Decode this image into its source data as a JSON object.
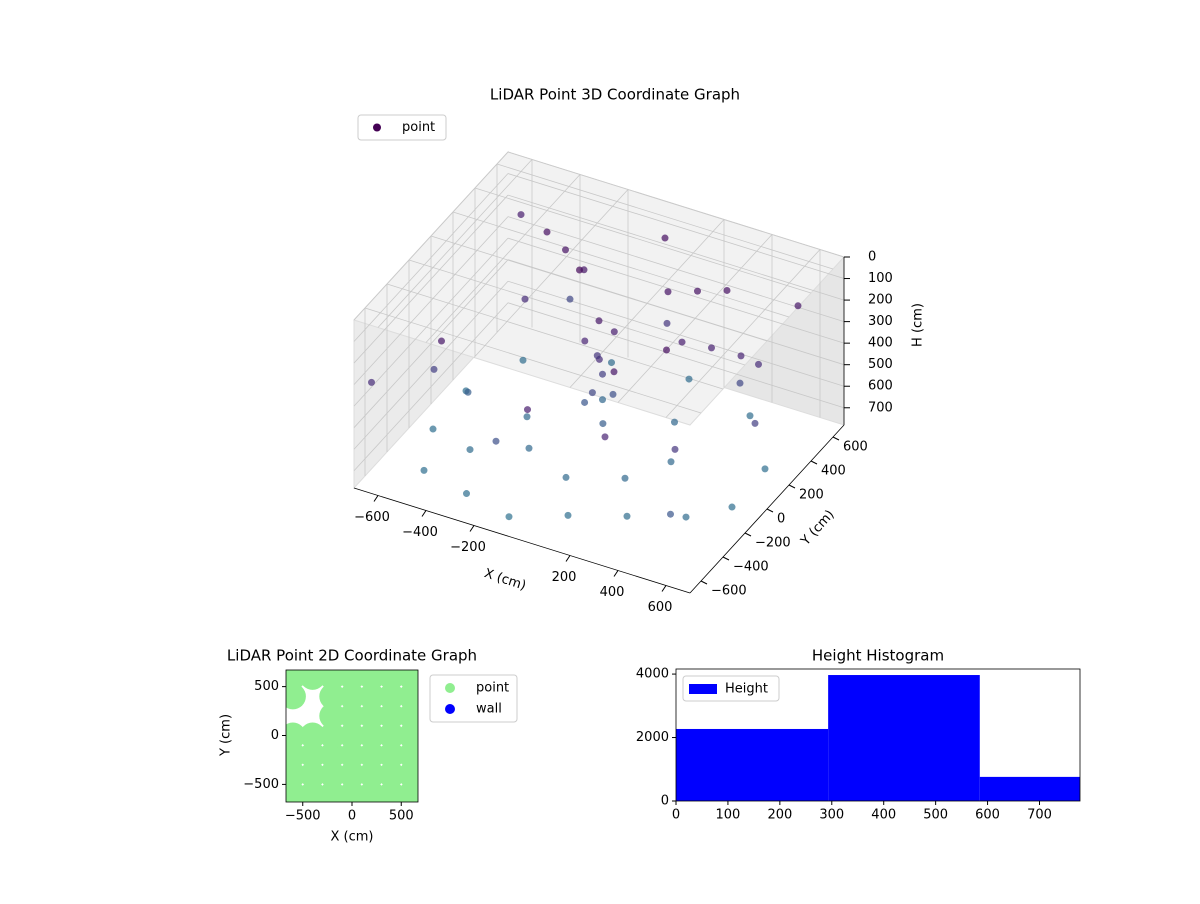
{
  "chart_data": [
    {
      "type": "scatter3d",
      "title": "LiDAR Point 3D Coordinate Graph",
      "xlabel": "X (cm)",
      "ylabel": "Y (cm)",
      "zlabel": "H (cm)",
      "xlim": [
        -700,
        700
      ],
      "ylim": [
        -700,
        700
      ],
      "zlim": [
        0,
        780
      ],
      "z_inverted": true,
      "xticks": [
        {
          "value": -600,
          "label": "−600"
        },
        {
          "value": -400,
          "label": "−400"
        },
        {
          "value": -200,
          "label": "−200"
        },
        200,
        400,
        600
      ],
      "yticks": [
        {
          "value": -600,
          "label": "−600"
        },
        {
          "value": -400,
          "label": "−400"
        },
        {
          "value": -200,
          "label": "−200"
        },
        0,
        200,
        400,
        600
      ],
      "zticks": [
        0,
        100,
        200,
        300,
        400,
        500,
        600,
        700
      ],
      "legend": "upper left",
      "colormap": [
        "#440154",
        "#482475",
        "#3b528b",
        "#2c728e"
      ],
      "series": [
        {
          "name": "point",
          "color": "#440154",
          "x": [
            0,
            50,
            -50,
            20,
            -30,
            10,
            0,
            40,
            -60,
            30,
            -200,
            -300,
            -400,
            150,
            250,
            350,
            300,
            400,
            500,
            550,
            -500,
            -300,
            -100,
            100,
            300,
            500,
            600,
            600,
            400,
            100,
            -200,
            -500,
            -600,
            -600,
            -400,
            -200,
            0,
            200,
            300,
            200,
            -100,
            -300,
            -550,
            -400,
            500,
            600,
            -600,
            0,
            300,
            -200,
            450,
            -500,
            100,
            -350,
            550,
            -650,
            650,
            0,
            200,
            -150,
            350,
            -450
          ],
          "y": [
            0,
            30,
            -20,
            -40,
            50,
            10,
            -60,
            40,
            0,
            -30,
            300,
            350,
            400,
            300,
            350,
            400,
            100,
            150,
            200,
            250,
            -500,
            -550,
            -600,
            -500,
            -400,
            -300,
            -100,
            200,
            500,
            600,
            550,
            400,
            100,
            -200,
            -300,
            -200,
            -300,
            -200,
            0,
            250,
            250,
            0,
            -300,
            200,
            -400,
            500,
            600,
            600,
            -600,
            -500,
            300,
            -100,
            400,
            500,
            -550,
            -650,
            0,
            -650,
            -300,
            150,
            -150,
            -450
          ],
          "z": [
            150,
            200,
            250,
            300,
            350,
            400,
            450,
            500,
            550,
            600,
            150,
            120,
            100,
            130,
            120,
            110,
            200,
            220,
            250,
            300,
            740,
            750,
            760,
            740,
            730,
            720,
            750,
            740,
            730,
            720,
            720,
            730,
            740,
            750,
            720,
            700,
            710,
            700,
            700,
            690,
            690,
            700,
            400,
            300,
            350,
            150,
            200,
            100,
            250,
            500,
            450,
            600,
            350,
            450,
            550,
            300,
            400,
            200,
            150,
            50,
            80,
            150
          ]
        }
      ]
    },
    {
      "type": "scatter",
      "title": "LiDAR Point 2D Coordinate Graph",
      "xlabel": "X (cm)",
      "ylabel": "Y (cm)",
      "xlim": [
        -670,
        670
      ],
      "ylim": [
        -680,
        670
      ],
      "xticks": [
        {
          "value": -500,
          "label": "−500"
        },
        0,
        500
      ],
      "yticks": [
        {
          "value": -500,
          "label": "−500"
        },
        0,
        500
      ],
      "legend": "outside right",
      "series": [
        {
          "name": "point",
          "color": "#90ee90",
          "x": [
            -600,
            -400,
            -200,
            0,
            200,
            400,
            600,
            -600,
            -400,
            -200,
            0,
            200,
            400,
            600,
            -600,
            -400,
            -200,
            0,
            200,
            400,
            600,
            -600,
            -400,
            -200,
            0,
            200,
            400,
            600,
            -200,
            0,
            200,
            400,
            600,
            -600,
            -200,
            0,
            200,
            400,
            600,
            -600,
            -400,
            -200,
            0,
            200,
            400,
            600
          ],
          "y": [
            -600,
            -600,
            -600,
            -600,
            -600,
            -600,
            -600,
            -400,
            -400,
            -400,
            -400,
            -400,
            -400,
            -400,
            -200,
            -200,
            -200,
            -200,
            -200,
            -200,
            -200,
            0,
            0,
            0,
            0,
            0,
            0,
            0,
            200,
            200,
            200,
            200,
            200,
            400,
            400,
            400,
            400,
            400,
            400,
            600,
            600,
            600,
            600,
            600,
            600,
            600
          ]
        },
        {
          "name": "wall",
          "color": "#0000ff",
          "x": [],
          "y": []
        }
      ]
    },
    {
      "type": "histogram",
      "title": "Height Histogram",
      "name": "Height",
      "color": "#0000ff",
      "bins": [
        0,
        293,
        585,
        778
      ],
      "counts": [
        2270,
        3970,
        760
      ],
      "xlim": [
        0,
        778
      ],
      "ylim": [
        0,
        4160
      ],
      "xticks": [
        0,
        100,
        200,
        300,
        400,
        500,
        600,
        700
      ],
      "yticks": [
        0,
        2000,
        4000
      ],
      "legend": "upper left"
    }
  ]
}
